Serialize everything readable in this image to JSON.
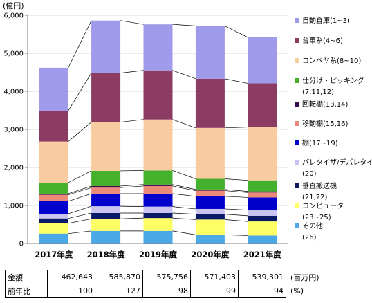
{
  "chart_data": {
    "type": "bar",
    "stacked": true,
    "yaxis_unit": "(億円)",
    "yticks": [
      "0",
      "1,000",
      "2,000",
      "3,000",
      "4,000",
      "5,000",
      "6,000"
    ],
    "ylim": [
      0,
      6000
    ],
    "categories": [
      "2017年度",
      "2018年度",
      "2019年度",
      "2020年度",
      "2021年度"
    ],
    "series": [
      {
        "name": "その他",
        "sub": "(26)",
        "color": "#4aa9e6",
        "values": [
          260,
          330,
          330,
          230,
          210
        ]
      },
      {
        "name": "コンピュータ",
        "sub": "(23~25)",
        "color": "#ffff66",
        "values": [
          270,
          320,
          340,
          400,
          370
        ]
      },
      {
        "name": "垂直搬送機",
        "sub": "(21,22)",
        "color": "#0b1a66",
        "values": [
          130,
          150,
          130,
          140,
          150
        ]
      },
      {
        "name": "パレタイザ/デパレタイザ",
        "sub": "(20)",
        "color": "#c9c5f0",
        "values": [
          120,
          180,
          170,
          140,
          150
        ]
      },
      {
        "name": "棚",
        "sub": "(17~19)",
        "color": "#0000cc",
        "values": [
          330,
          330,
          340,
          330,
          330
        ]
      },
      {
        "name": "移動棚",
        "sub": "(15,16)",
        "color": "#ec8a7a",
        "values": [
          170,
          160,
          200,
          150,
          130
        ]
      },
      {
        "name": "回転棚",
        "sub": "(13,14)",
        "color": "#3a0a4a",
        "values": [
          30,
          40,
          40,
          30,
          30
        ]
      },
      {
        "name": "仕分け・ピッキング",
        "sub": "(7,11,12)",
        "color": "#44b02c",
        "values": [
          290,
          400,
          370,
          280,
          290
        ]
      },
      {
        "name": "コンベヤ系",
        "sub": "(8~10)",
        "color": "#f9cba0",
        "values": [
          1080,
          1280,
          1340,
          1340,
          1400
        ]
      },
      {
        "name": "台車系",
        "sub": "(4~6)",
        "color": "#8c3b63",
        "values": [
          810,
          1290,
          1290,
          1290,
          1150
        ]
      },
      {
        "name": "自動倉庫",
        "sub": "(1~3)",
        "color": "#9f9bea",
        "values": [
          1130,
          1380,
          1210,
          1390,
          1210
        ]
      }
    ]
  },
  "table": {
    "rows": [
      {
        "label": "金額",
        "values": [
          "462,643",
          "585,870",
          "575,756",
          "571,403",
          "539,301"
        ],
        "unit": "(百万円)"
      },
      {
        "label": "前年比",
        "values": [
          "100",
          "127",
          "98",
          "99",
          "94"
        ],
        "unit": "(%)"
      }
    ]
  }
}
